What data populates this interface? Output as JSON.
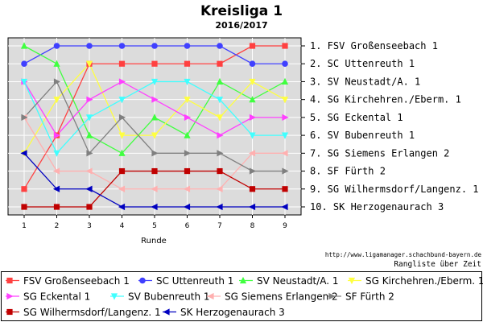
{
  "chart_data": {
    "type": "line",
    "title": "Kreisliga 1",
    "subtitle": "2016/2017",
    "xlabel": "Runde",
    "x": [
      1,
      2,
      3,
      4,
      5,
      6,
      7,
      8,
      9
    ],
    "ylim": [
      1,
      10
    ],
    "y_inverted": true,
    "grid": true,
    "legend_placement": "bottom",
    "source": "http://www.ligamanager.schachbund-bayern.de",
    "caption": "Rangliste über Zeit",
    "standings": [
      "1. FSV Großenseebach 1",
      "2. SC Uttenreuth 1",
      "3. SV Neustadt/A. 1",
      "4. SG Kirchehren./Eberm. 1",
      "5. SG Eckental 1",
      "6. SV Bubenreuth 1",
      "7. SG Siemens Erlangen 2",
      "8. SF Fürth 2",
      "9. SG Wilhermsdorf/Langenz. 1",
      "10. SK Herzogenaurach 3"
    ],
    "series": [
      {
        "name": "FSV Großenseebach 1",
        "color": "#ff4040",
        "marker": "square",
        "values": [
          9,
          6,
          2,
          2,
          2,
          2,
          2,
          1,
          1
        ]
      },
      {
        "name": "SC Uttenreuth 1",
        "color": "#4040ff",
        "marker": "circle",
        "values": [
          2,
          1,
          1,
          1,
          1,
          1,
          1,
          2,
          2
        ]
      },
      {
        "name": "SV Neustadt/A. 1",
        "color": "#40ff40",
        "marker": "triangle-up",
        "values": [
          1,
          2,
          6,
          7,
          5,
          6,
          3,
          4,
          3
        ]
      },
      {
        "name": "SG Kirchehren./Eberm. 1",
        "color": "#ffff40",
        "marker": "triangle-down",
        "values": [
          7,
          4,
          2,
          6,
          6,
          4,
          5,
          3,
          4
        ]
      },
      {
        "name": "SG Eckental 1",
        "color": "#ff40ff",
        "marker": "triangle-right",
        "values": [
          3,
          6,
          4,
          3,
          4,
          5,
          6,
          5,
          5
        ]
      },
      {
        "name": "SV Bubenreuth 1",
        "color": "#40ffff",
        "marker": "triangle-down",
        "values": [
          3,
          7,
          5,
          4,
          3,
          3,
          4,
          6,
          6
        ]
      },
      {
        "name": "SG Siemens Erlangen 2",
        "color": "#ffb0b0",
        "marker": "triangle-left",
        "values": [
          5,
          8,
          8,
          9,
          9,
          9,
          9,
          7,
          7
        ]
      },
      {
        "name": "SF Fürth 2",
        "color": "#808080",
        "marker": "triangle-right",
        "values": [
          5,
          3,
          7,
          5,
          7,
          7,
          7,
          8,
          8
        ]
      },
      {
        "name": "SG Wilhermsdorf/Langenz. 1",
        "color": "#c00000",
        "marker": "square",
        "values": [
          10,
          10,
          10,
          8,
          8,
          8,
          8,
          9,
          9
        ]
      },
      {
        "name": "SK Herzogenaurach 3",
        "color": "#0000c0",
        "marker": "triangle-left",
        "values": [
          7,
          9,
          9,
          10,
          10,
          10,
          10,
          10,
          10
        ]
      }
    ]
  }
}
